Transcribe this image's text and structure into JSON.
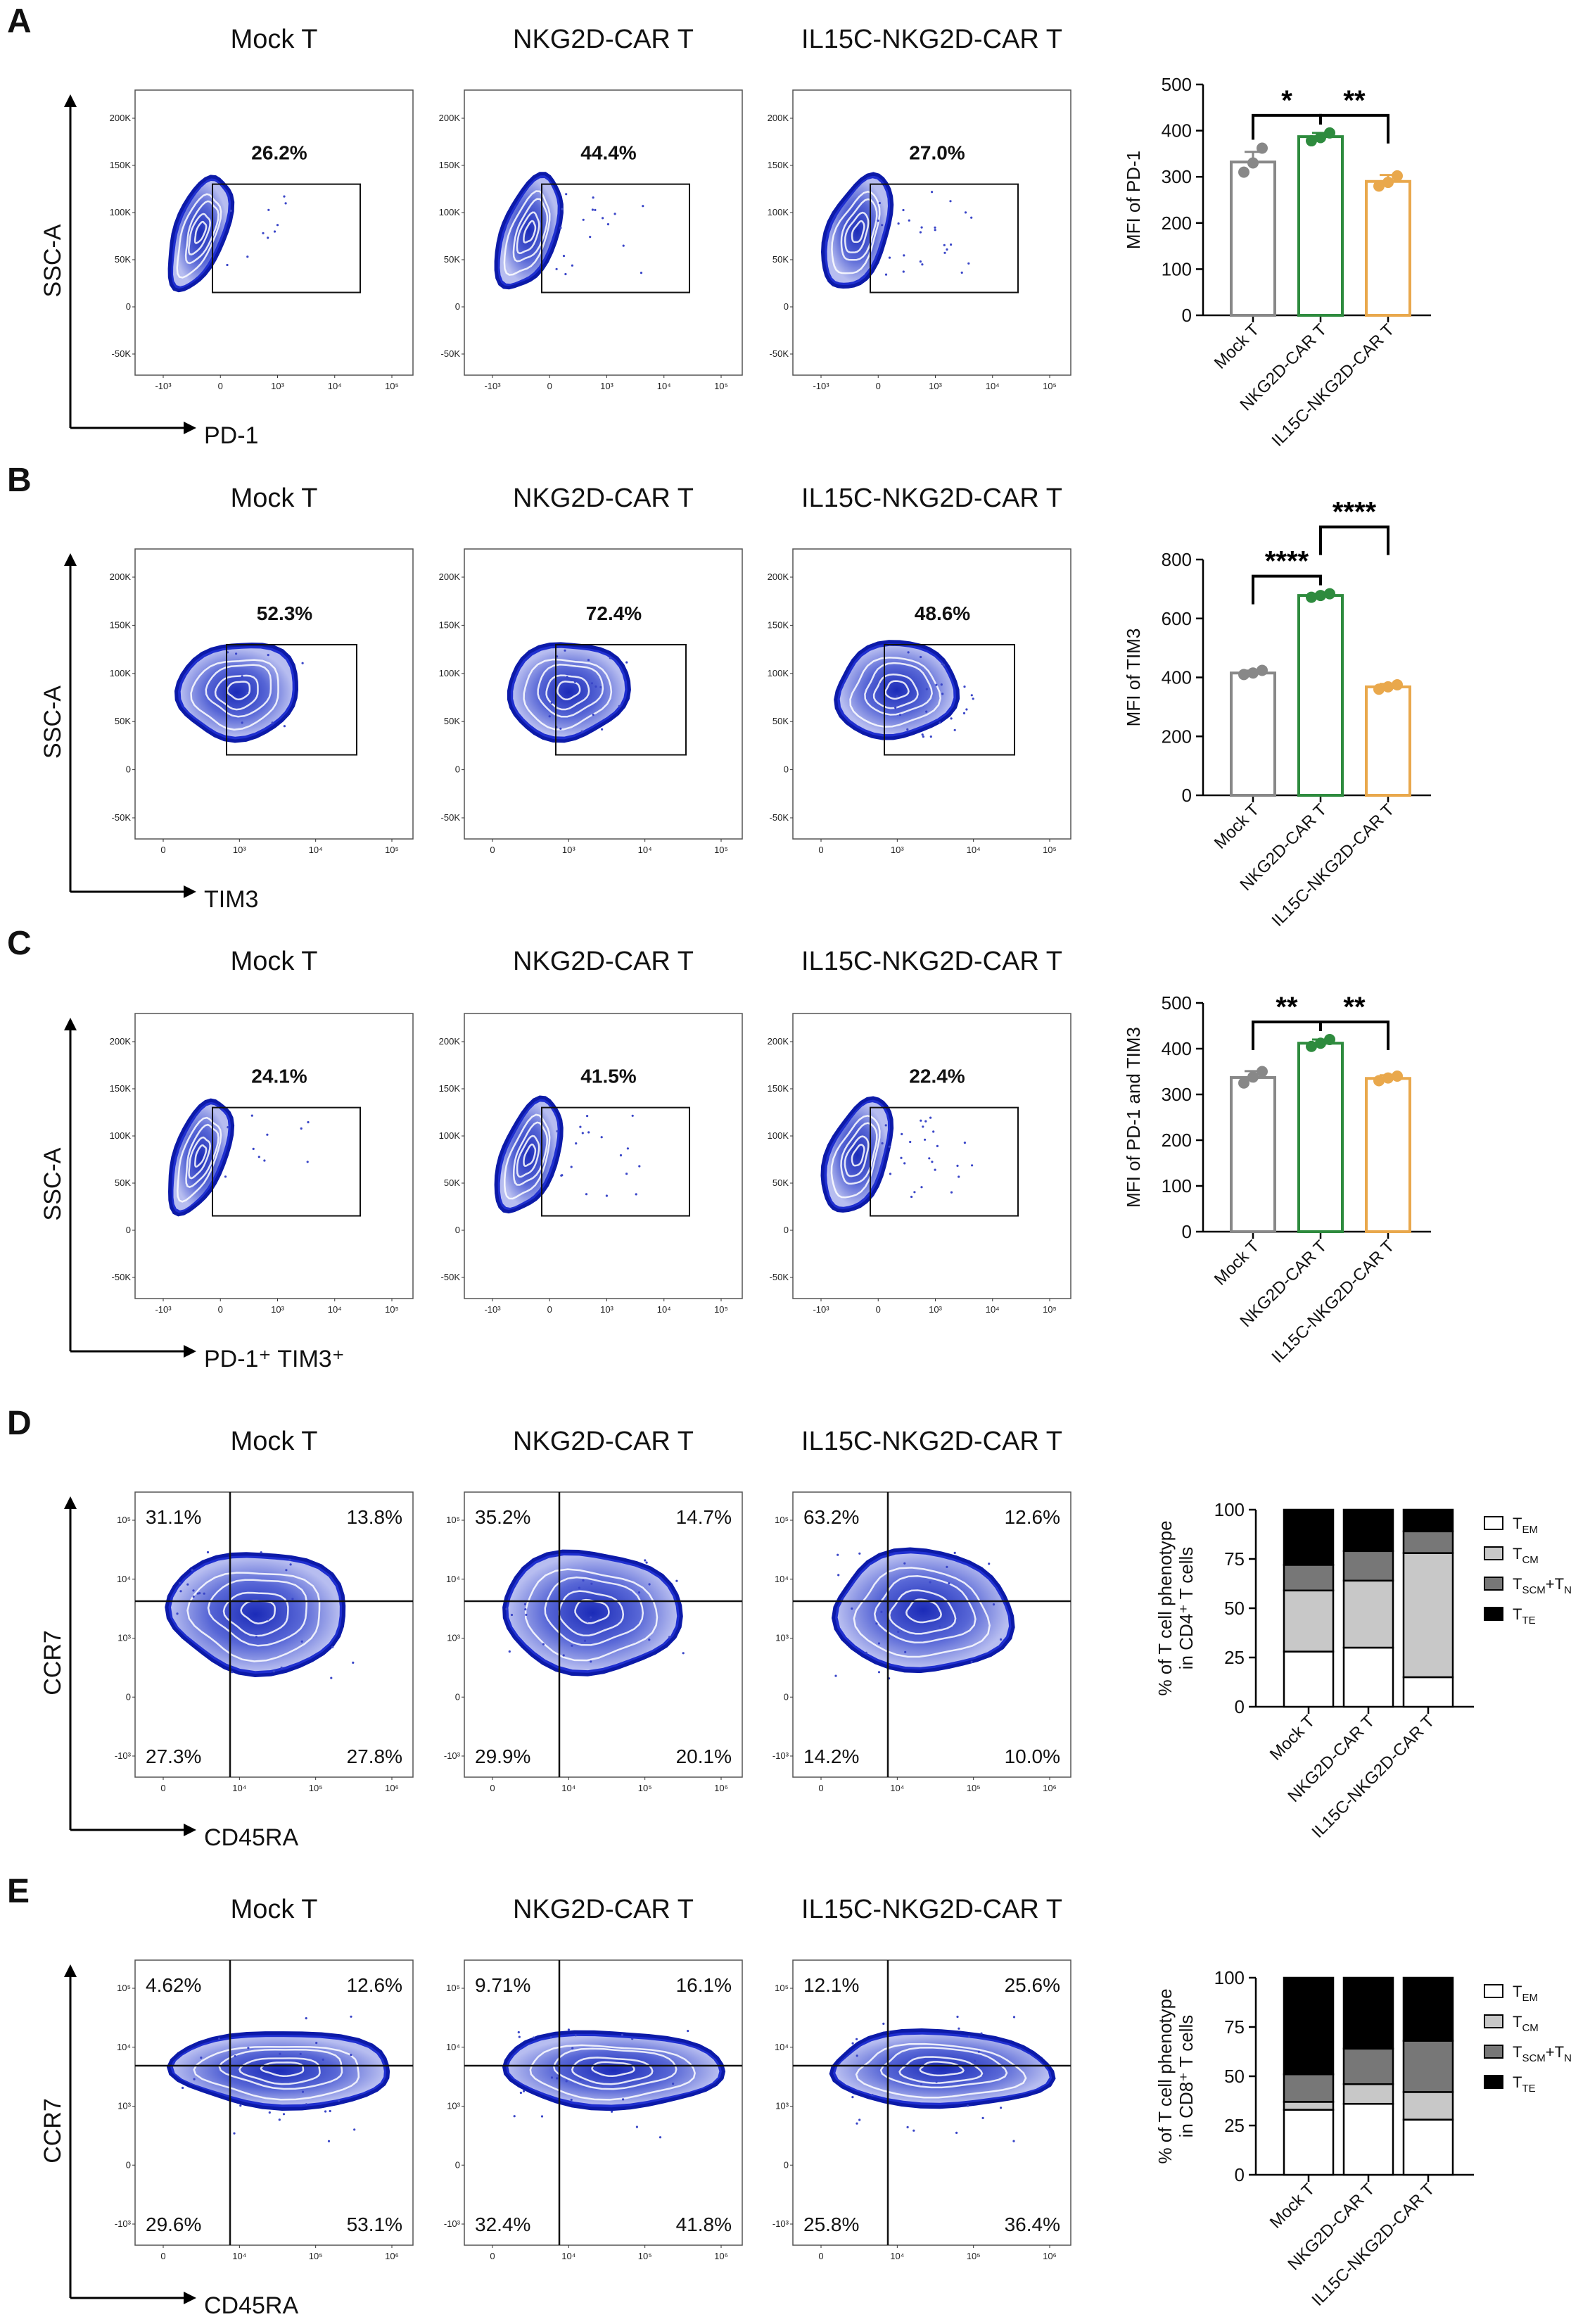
{
  "panels": [
    {
      "label": "A",
      "type": "gate",
      "titles": [
        "Mock T",
        "NKG2D-CAR T",
        "IL15C-NKG2D-CAR T"
      ],
      "gates": [
        "26.2%",
        "44.4%",
        "27.0%"
      ],
      "y_axis": "SSC-A",
      "x_axis": "PD-1",
      "y_ticks": [
        "200K",
        "150K",
        "100K",
        "50K",
        "0",
        "-50K"
      ],
      "x_ticks": [
        "-10³",
        "0",
        "10³",
        "10⁴",
        "10⁵"
      ]
    },
    {
      "label": "B",
      "type": "gate",
      "titles": [
        "Mock T",
        "NKG2D-CAR T",
        "IL15C-NKG2D-CAR T"
      ],
      "gates": [
        "52.3%",
        "72.4%",
        "48.6%"
      ],
      "y_axis": "SSC-A",
      "x_axis": "TIM3",
      "y_ticks": [
        "200K",
        "150K",
        "100K",
        "50K",
        "0",
        "-50K"
      ],
      "x_ticks": [
        "0",
        "10³",
        "10⁴",
        "10⁵"
      ]
    },
    {
      "label": "C",
      "type": "gate",
      "titles": [
        "Mock T",
        "NKG2D-CAR T",
        "IL15C-NKG2D-CAR T"
      ],
      "gates": [
        "24.1%",
        "41.5%",
        "22.4%"
      ],
      "y_axis": "SSC-A",
      "x_axis": "PD-1⁺ TIM3⁺",
      "y_ticks": [
        "200K",
        "150K",
        "100K",
        "50K",
        "0",
        "-50K"
      ],
      "x_ticks": [
        "-10³",
        "0",
        "10³",
        "10⁴",
        "10⁵"
      ]
    },
    {
      "label": "D",
      "type": "quad",
      "titles": [
        "Mock T",
        "NKG2D-CAR T",
        "IL15C-NKG2D-CAR T"
      ],
      "quadrants": [
        {
          "ul": "31.1%",
          "ur": "13.8%",
          "ll": "27.3%",
          "lr": "27.8%"
        },
        {
          "ul": "35.2%",
          "ur": "14.7%",
          "ll": "29.9%",
          "lr": "20.1%"
        },
        {
          "ul": "63.2%",
          "ur": "12.6%",
          "ll": "14.2%",
          "lr": "10.0%"
        }
      ],
      "y_axis": "CCR7",
      "x_axis": "CD45RA",
      "y_ticks": [
        "10⁵",
        "10⁴",
        "10³",
        "0",
        "-10³"
      ],
      "x_ticks": [
        "0",
        "10⁴",
        "10⁵",
        "10⁶"
      ]
    },
    {
      "label": "E",
      "type": "quad",
      "titles": [
        "Mock T",
        "NKG2D-CAR T",
        "IL15C-NKG2D-CAR T"
      ],
      "quadrants": [
        {
          "ul": "4.62%",
          "ur": "12.6%",
          "ll": "29.6%",
          "lr": "53.1%"
        },
        {
          "ul": "9.71%",
          "ur": "16.1%",
          "ll": "32.4%",
          "lr": "41.8%"
        },
        {
          "ul": "12.1%",
          "ur": "25.6%",
          "ll": "25.8%",
          "lr": "36.4%"
        }
      ],
      "y_axis": "CCR7",
      "x_axis": "CD45RA",
      "y_ticks": [
        "10⁵",
        "10⁴",
        "10³",
        "0",
        "-10³"
      ],
      "x_ticks": [
        "0",
        "10⁴",
        "10⁵",
        "10⁶"
      ]
    }
  ],
  "chart_data": [
    {
      "panel": "A",
      "type": "bar",
      "categories": [
        "Mock T",
        "NKG2D-CAR T",
        "IL15C-NKG2D-CAR T"
      ],
      "values": [
        332,
        387,
        290
      ],
      "errors": [
        22,
        8,
        14
      ],
      "points": [
        [
          310,
          330,
          362
        ],
        [
          378,
          385,
          395
        ],
        [
          280,
          288,
          302
        ]
      ],
      "colors": [
        "#888888",
        "#2e8b3e",
        "#e9a84c"
      ],
      "ylabel": "MFI of PD-1",
      "ylim": [
        0,
        500
      ],
      "yticks": [
        0,
        100,
        200,
        300,
        400,
        500
      ],
      "significance": [
        {
          "from": 0,
          "to": 1,
          "label": "*"
        },
        {
          "from": 1,
          "to": 2,
          "label": "**"
        }
      ]
    },
    {
      "panel": "B",
      "type": "bar",
      "categories": [
        "Mock T",
        "NKG2D-CAR T",
        "IL15C-NKG2D-CAR T"
      ],
      "values": [
        415,
        678,
        368
      ],
      "errors": [
        8,
        6,
        10
      ],
      "points": [
        [
          410,
          415,
          424
        ],
        [
          672,
          678,
          684
        ],
        [
          360,
          368,
          375
        ]
      ],
      "colors": [
        "#888888",
        "#2e8b3e",
        "#e9a84c"
      ],
      "ylabel": "MFI of TIM3",
      "ylim": [
        0,
        800
      ],
      "yticks": [
        0,
        200,
        400,
        600,
        800
      ],
      "significance": [
        {
          "from": 0,
          "to": 1,
          "label": "****"
        },
        {
          "from": 1,
          "to": 2,
          "label": "****",
          "outer": true
        }
      ]
    },
    {
      "panel": "C",
      "type": "bar",
      "categories": [
        "Mock T",
        "NKG2D-CAR T",
        "IL15C-NKG2D-CAR T"
      ],
      "values": [
        337,
        412,
        335
      ],
      "errors": [
        14,
        8,
        7
      ],
      "points": [
        [
          325,
          338,
          350
        ],
        [
          405,
          412,
          420
        ],
        [
          330,
          336,
          340
        ]
      ],
      "colors": [
        "#888888",
        "#2e8b3e",
        "#e9a84c"
      ],
      "ylabel": "MFI of PD-1 and TIM3",
      "ylim": [
        0,
        500
      ],
      "yticks": [
        0,
        100,
        200,
        300,
        400,
        500
      ],
      "significance": [
        {
          "from": 0,
          "to": 1,
          "label": "**"
        },
        {
          "from": 1,
          "to": 2,
          "label": "**"
        }
      ]
    },
    {
      "panel": "D",
      "type": "bar",
      "stacked": true,
      "categories": [
        "Mock T",
        "NKG2D-CAR T",
        "IL15C-NKG2D-CAR T"
      ],
      "ylabel": "% of T cell phenotype",
      "ylabel2": "in CD4⁺ T cells",
      "ylim": [
        0,
        100
      ],
      "yticks": [
        0,
        25,
        50,
        75,
        100
      ],
      "series": [
        {
          "name": "T",
          "sub": "EM",
          "color": "#ffffff",
          "values": [
            28,
            30,
            15
          ],
          "errors": [
            1.5,
            2.5,
            2
          ]
        },
        {
          "name": "T",
          "sub": "CM",
          "color": "#c8c8c8",
          "values": [
            31,
            34,
            63
          ],
          "errors": [
            2.5,
            2.5,
            2
          ]
        },
        {
          "name": "T",
          "sub": "SCM",
          "suffix": "+T",
          "sub2": "N",
          "color": "#777777",
          "values": [
            13,
            15,
            11
          ],
          "errors": [
            0,
            0,
            0
          ]
        },
        {
          "name": "T",
          "sub": "TE",
          "color": "#000000",
          "values": [
            28,
            21,
            11
          ],
          "errors": [
            0,
            0,
            0
          ]
        }
      ]
    },
    {
      "panel": "E",
      "type": "bar",
      "stacked": true,
      "categories": [
        "Mock T",
        "NKG2D-CAR T",
        "IL15C-NKG2D-CAR T"
      ],
      "ylabel": "% of T cell phenotype",
      "ylabel2": "in CD8⁺ T cells",
      "ylim": [
        0,
        100
      ],
      "yticks": [
        0,
        25,
        50,
        75,
        100
      ],
      "series": [
        {
          "name": "T",
          "sub": "EM",
          "color": "#ffffff",
          "values": [
            33,
            36,
            28
          ],
          "errors": [
            2,
            2,
            2
          ]
        },
        {
          "name": "T",
          "sub": "CM",
          "color": "#c8c8c8",
          "values": [
            4,
            10,
            14
          ],
          "errors": [
            1,
            1,
            2
          ]
        },
        {
          "name": "T",
          "sub": "SCM",
          "suffix": "+T",
          "sub2": "N",
          "color": "#777777",
          "values": [
            14,
            18,
            26
          ],
          "errors": [
            0,
            0,
            0
          ]
        },
        {
          "name": "T",
          "sub": "TE",
          "color": "#000000",
          "values": [
            49,
            36,
            32
          ],
          "errors": [
            0,
            0,
            0
          ]
        }
      ]
    }
  ]
}
